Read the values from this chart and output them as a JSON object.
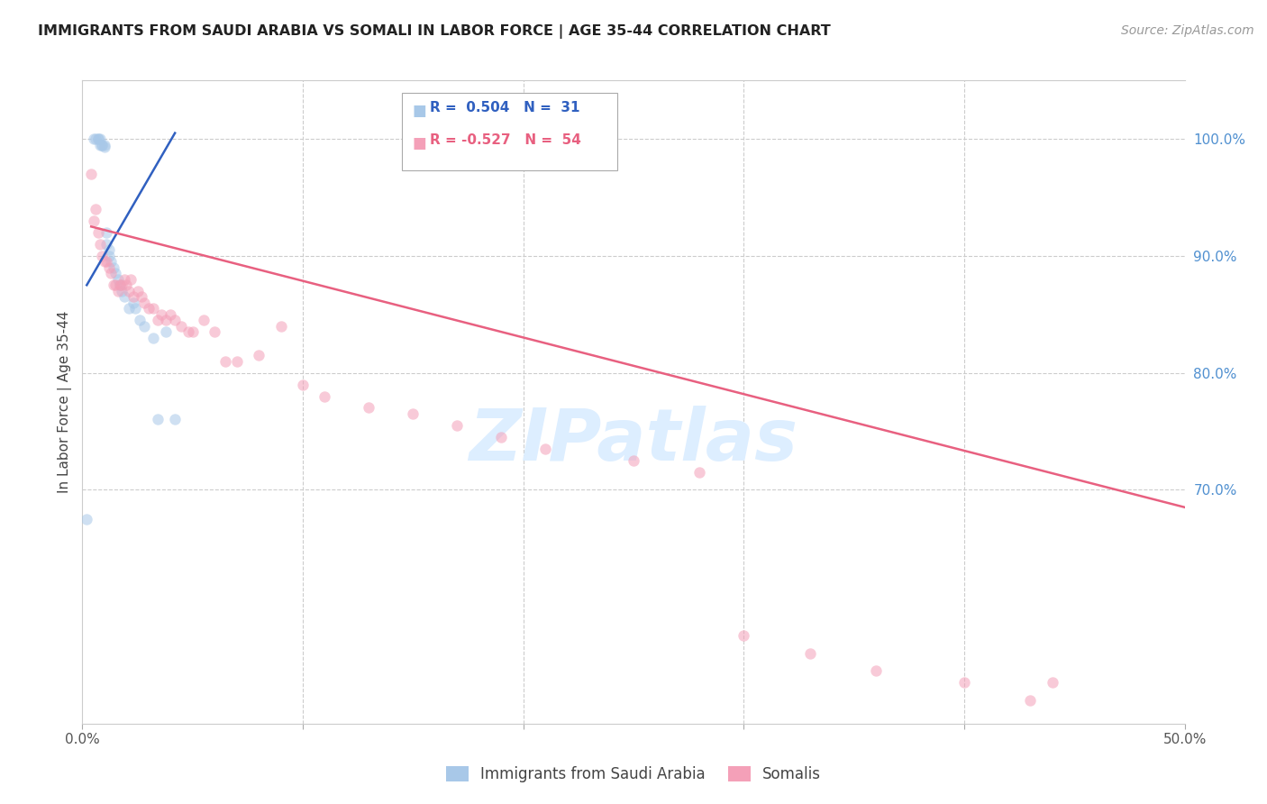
{
  "title": "IMMIGRANTS FROM SAUDI ARABIA VS SOMALI IN LABOR FORCE | AGE 35-44 CORRELATION CHART",
  "source": "Source: ZipAtlas.com",
  "ylabel": "In Labor Force | Age 35-44",
  "xlim": [
    0.0,
    0.5
  ],
  "ylim": [
    0.5,
    1.05
  ],
  "legend_blue_r": "R =  0.504",
  "legend_blue_n": "N =  31",
  "legend_pink_r": "R = -0.527",
  "legend_pink_n": "N =  54",
  "blue_color": "#a8c8e8",
  "pink_color": "#f4a0b8",
  "blue_line_color": "#3060c0",
  "pink_line_color": "#e86080",
  "right_axis_color": "#5090d0",
  "grid_color": "#cccccc",
  "title_color": "#222222",
  "source_color": "#999999",
  "background_color": "#ffffff",
  "watermark_text": "ZIPatlas",
  "watermark_color": "#ddeeff",
  "blue_dots_x": [
    0.002,
    0.005,
    0.006,
    0.007,
    0.007,
    0.008,
    0.008,
    0.009,
    0.009,
    0.01,
    0.01,
    0.011,
    0.011,
    0.012,
    0.012,
    0.013,
    0.014,
    0.015,
    0.016,
    0.017,
    0.018,
    0.019,
    0.021,
    0.023,
    0.024,
    0.026,
    0.028,
    0.032,
    0.034,
    0.038,
    0.042
  ],
  "blue_dots_y": [
    0.675,
    1.0,
    1.0,
    1.0,
    1.0,
    1.0,
    0.995,
    0.995,
    0.995,
    0.995,
    0.993,
    0.92,
    0.91,
    0.905,
    0.9,
    0.895,
    0.89,
    0.885,
    0.88,
    0.875,
    0.87,
    0.865,
    0.855,
    0.86,
    0.855,
    0.845,
    0.84,
    0.83,
    0.76,
    0.835,
    0.76
  ],
  "pink_dots_x": [
    0.004,
    0.005,
    0.006,
    0.007,
    0.008,
    0.009,
    0.01,
    0.011,
    0.012,
    0.013,
    0.014,
    0.015,
    0.016,
    0.017,
    0.018,
    0.019,
    0.02,
    0.021,
    0.022,
    0.023,
    0.025,
    0.027,
    0.028,
    0.03,
    0.032,
    0.034,
    0.036,
    0.038,
    0.04,
    0.042,
    0.045,
    0.048,
    0.05,
    0.055,
    0.06,
    0.065,
    0.07,
    0.08,
    0.09,
    0.1,
    0.11,
    0.13,
    0.15,
    0.17,
    0.19,
    0.21,
    0.25,
    0.28,
    0.3,
    0.33,
    0.36,
    0.4,
    0.43,
    0.44
  ],
  "pink_dots_y": [
    0.97,
    0.93,
    0.94,
    0.92,
    0.91,
    0.9,
    0.895,
    0.895,
    0.89,
    0.885,
    0.875,
    0.875,
    0.87,
    0.875,
    0.875,
    0.88,
    0.875,
    0.87,
    0.88,
    0.865,
    0.87,
    0.865,
    0.86,
    0.855,
    0.855,
    0.845,
    0.85,
    0.845,
    0.85,
    0.845,
    0.84,
    0.835,
    0.835,
    0.845,
    0.835,
    0.81,
    0.81,
    0.815,
    0.84,
    0.79,
    0.78,
    0.77,
    0.765,
    0.755,
    0.745,
    0.735,
    0.725,
    0.715,
    0.575,
    0.56,
    0.545,
    0.535,
    0.52,
    0.535
  ],
  "blue_line_x0": 0.002,
  "blue_line_x1": 0.042,
  "blue_line_y0": 0.875,
  "blue_line_y1": 1.005,
  "pink_line_x0": 0.004,
  "pink_line_x1": 0.5,
  "pink_line_y0": 0.925,
  "pink_line_y1": 0.685,
  "marker_size": 80,
  "marker_alpha": 0.55,
  "line_width": 1.8,
  "watermark_fontsize": 58,
  "xticks": [
    0.0,
    0.1,
    0.2,
    0.3,
    0.4,
    0.5
  ],
  "yticks_right": [
    0.7,
    0.8,
    0.9,
    1.0
  ],
  "ytick_labels_right": [
    "70.0%",
    "80.0%",
    "90.0%",
    "100.0%"
  ]
}
